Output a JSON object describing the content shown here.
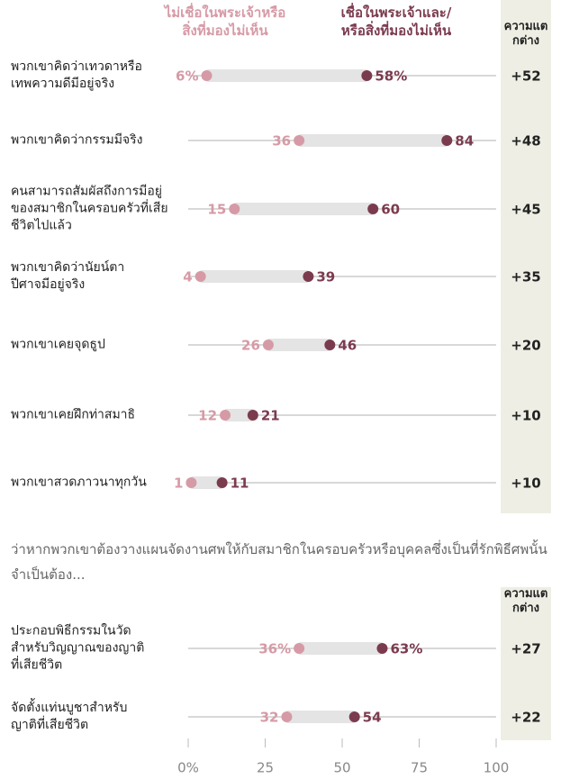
{
  "chart_data": [
    {
      "type": "dot",
      "categories": [
        "พวกเขาคิดว่าเทวดาหรือ\nเทพความดีมีอยู่จริง",
        "พวกเขาคิดว่ากรรมมีจริง",
        "คนสามารถสัมผัสถึงการมีอยู่\nของสมาชิกในครอบครัวที่เสีย\nชีวิตไปแล้ว",
        "พวกเขาคิดว่านัยน์ตา\nปีศาจมีอยู่จริง",
        "พวกเขาเคยจุดธูป",
        "พวกเขาเคยฝึกท่าสมาธิ",
        "พวกเขาสวดภาวนาทุกวัน"
      ],
      "series": [
        {
          "name": "ไม่เชื่อในพระเจ้าหรือ\nสิ่งที่มองไม่เห็น",
          "color": "#d69aa6",
          "values": [
            6,
            36,
            15,
            4,
            26,
            12,
            1
          ],
          "value_labels": [
            "6%",
            "36",
            "15",
            "4",
            "26",
            "12",
            "1"
          ]
        },
        {
          "name": "เชื่อในพระเจ้าและ/\nหรือสิ่งที่มองไม่เห็น",
          "color": "#7b3b4e",
          "values": [
            58,
            84,
            60,
            39,
            46,
            21,
            11
          ],
          "value_labels": [
            "58%",
            "84",
            "60",
            "39",
            "46",
            "21",
            "11"
          ]
        }
      ],
      "difference": {
        "header": "ความแต\nกต่าง",
        "values": [
          52,
          48,
          45,
          35,
          20,
          10,
          10
        ],
        "value_labels": [
          "+52",
          "+48",
          "+45",
          "+35",
          "+20",
          "+10",
          "+10"
        ]
      },
      "xlim": [
        0,
        100
      ]
    },
    {
      "type": "dot",
      "subtitle": "ว่าหากพวกเขาต้องวางแผนจัดงานศพให้กับสมาชิกในครอบครัวหรือบุคคลซึ่งเป็นที่รักพิธีศพนั้นจำเป็นต้อง...",
      "categories": [
        "ประกอบพิธีกรรมในวัด\nสำหรับวิญญาณของญาติ\nที่เสียชีวิต",
        "จัดตั้งแท่นบูชาสำหรับ\nญาติที่เสียชีวิต"
      ],
      "series": [
        {
          "color": "#d69aa6",
          "values": [
            36,
            32
          ],
          "value_labels": [
            "36%",
            "32"
          ]
        },
        {
          "color": "#7b3b4e",
          "values": [
            63,
            54
          ],
          "value_labels": [
            "63%",
            "54"
          ]
        }
      ],
      "difference": {
        "header": "ความแต\nกต่าง",
        "values": [
          27,
          22
        ],
        "value_labels": [
          "+27",
          "+22"
        ]
      },
      "xlim": [
        0,
        100
      ],
      "xticks": [
        {
          "value": 0,
          "label": "0%"
        },
        25,
        50,
        75,
        100
      ]
    }
  ]
}
